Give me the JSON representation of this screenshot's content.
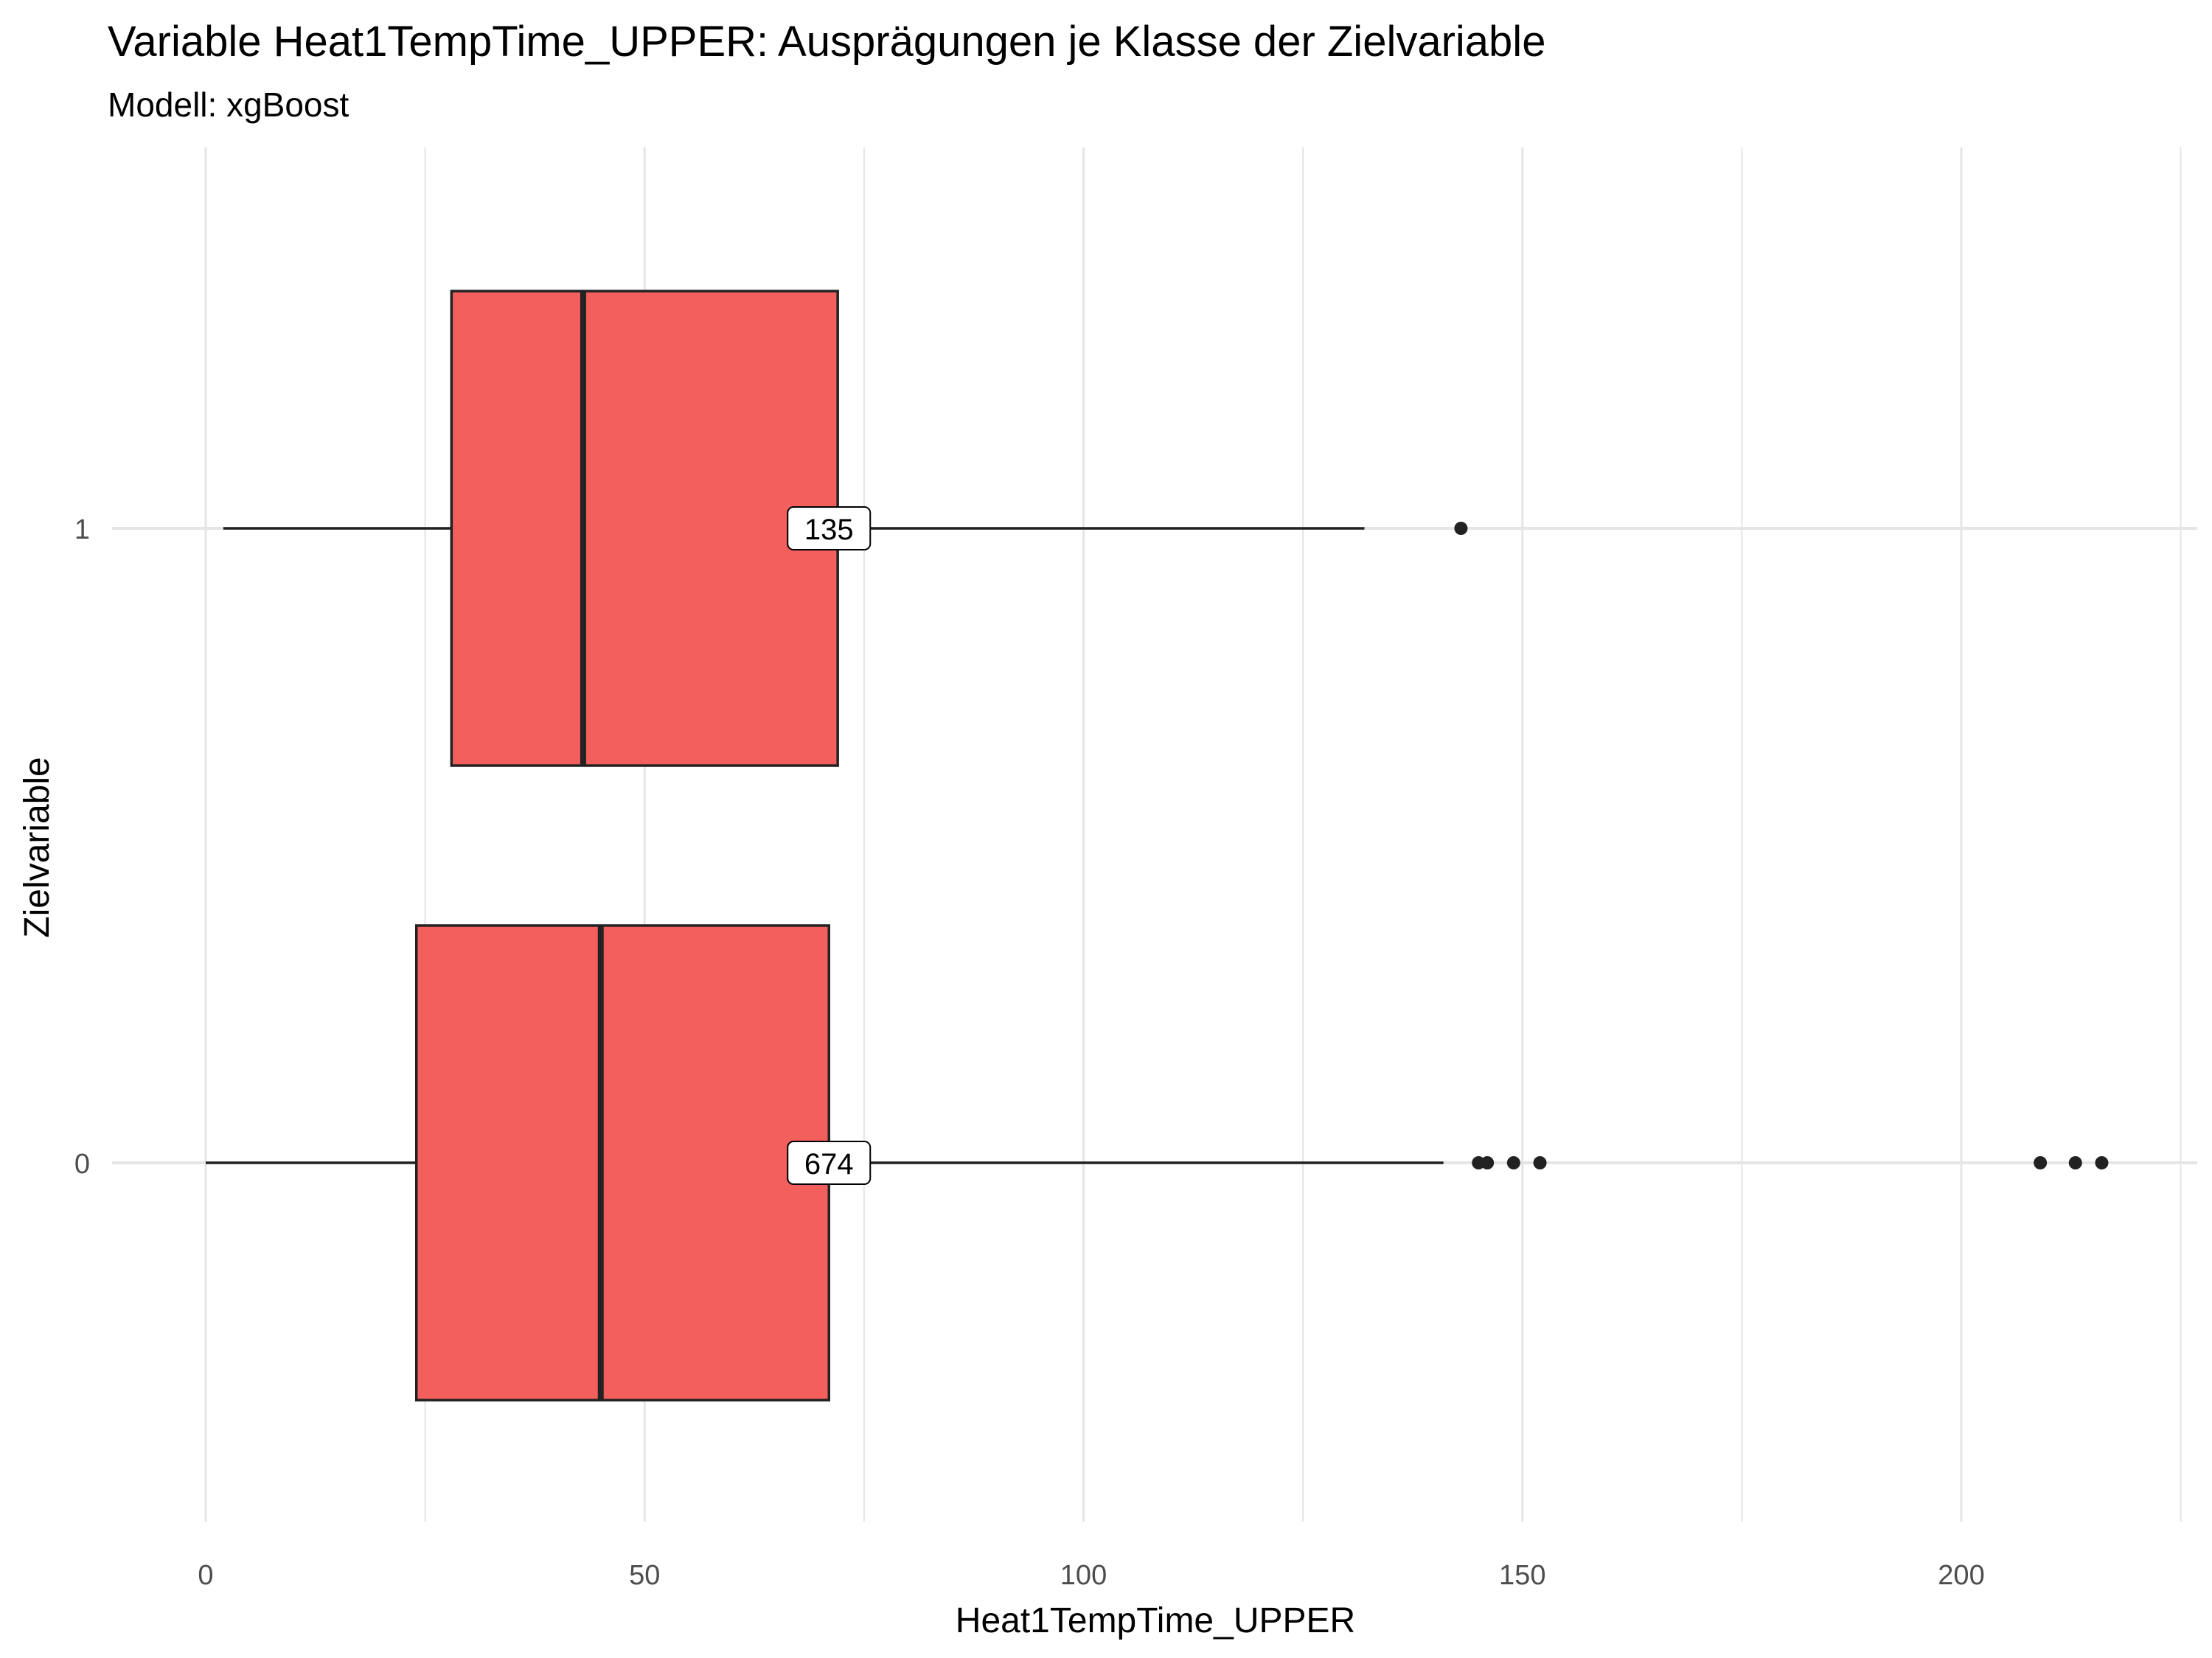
{
  "chart_data": {
    "type": "boxplot",
    "orientation": "horizontal",
    "title": "Variable Heat1TempTime_UPPER: Ausprägungen je Klasse der Zielvariable",
    "subtitle": "Modell: xgBoost",
    "xlabel": "Heat1TempTime_UPPER",
    "ylabel": "Zielvariable",
    "xlim": [
      -3,
      227
    ],
    "x_ticks": [
      0,
      50,
      100,
      150,
      200
    ],
    "x_tick_labels": [
      "0",
      "50",
      "100",
      "150",
      "200"
    ],
    "categories": [
      "0",
      "1"
    ],
    "grid": true,
    "legend": "none",
    "fill_color": "#f25f5c",
    "line_color": "#222222",
    "grid_color": "#e5e5e5",
    "boxes": [
      {
        "category": "1",
        "whisker_low": 2,
        "q1": 28,
        "median": 43,
        "q3": 72,
        "whisker_high": 132,
        "outliers": [
          143
        ],
        "count_label": "135",
        "count_label_x": 71
      },
      {
        "category": "0",
        "whisker_low": 0,
        "q1": 24,
        "median": 45,
        "q3": 71,
        "whisker_high": 141,
        "outliers": [
          145,
          146,
          149,
          152,
          209,
          213,
          216
        ],
        "count_label": "674",
        "count_label_x": 71
      }
    ]
  }
}
